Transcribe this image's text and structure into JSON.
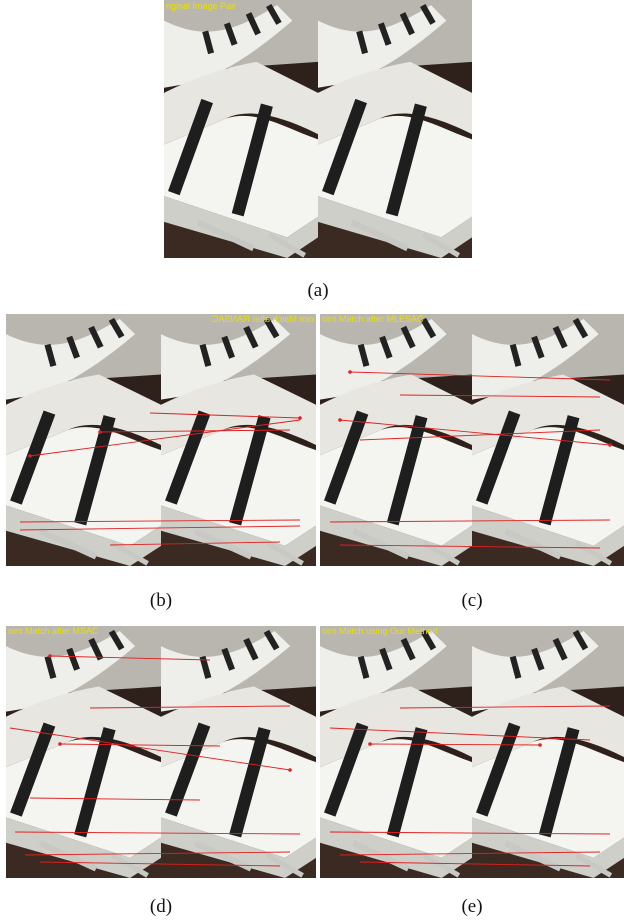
{
  "panels": [
    {
      "overlay": "riginal Image Pair",
      "caption": "(a)"
    },
    {
      "overlay": "oint Match after RANSAC",
      "caption": "(b)"
    },
    {
      "overlay": "oint Match after MLESAC",
      "caption": "(c)"
    },
    {
      "overlay": "oint Match after MSAC",
      "caption": "(d)"
    },
    {
      "overlay": "oint Match using Our Method",
      "caption": "(e)"
    }
  ]
}
